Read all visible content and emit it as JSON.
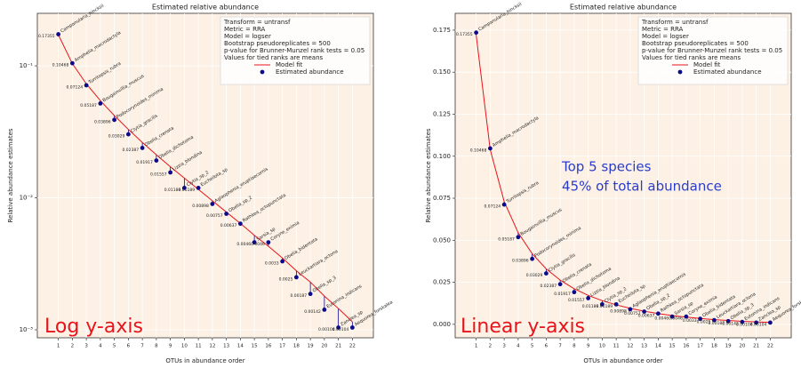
{
  "chart_data": [
    {
      "type": "line",
      "title": "Estimated relative abundance",
      "xlabel": "OTUs in abundance order",
      "ylabel": "Relative abundance estimates",
      "log_y": true,
      "grid": true,
      "legend": "upper right",
      "legend_text": [
        "Transform = untransf",
        "Metric = RRA",
        "Model = logser",
        "Bootstrap pseudoreplicates = 500",
        "p-value for Brunner-Munzel rank tests = 0.05",
        "Values for tied ranks are means"
      ],
      "annotations": [
        "Log y-axis"
      ],
      "x": [
        1,
        2,
        3,
        4,
        5,
        6,
        7,
        8,
        9,
        10,
        11,
        12,
        13,
        14,
        15,
        16,
        17,
        18,
        19,
        20,
        21,
        22
      ],
      "labels": [
        "Campanularia_hincksii",
        "Amphelia_macrodactyla",
        "Turritopsis_rubra",
        "Bougainvillia_muscus",
        "Podocorynoides_minima",
        "Clytia_gracilis",
        "Obelia_crenata",
        "Obelia_dichotoma",
        "Lizzia_blondina",
        "Clytia_sp_2",
        "Eucheilota_sp",
        "Aglaophenia_eruptiaecornis",
        "Obelia_sp_2",
        "Rathkea_octopunctata",
        "Sarsia_sp",
        "Coryne_eximia",
        "Obelia_bidentata",
        "Leuckartiara_octona",
        "Obelia_sp_3",
        "Eutonina_indicans",
        "Zanclea_sp",
        "Aequorea_forskalea"
      ],
      "series": [
        {
          "name": "Model fit",
          "color": "#e8141b",
          "values": [
            0.172,
            0.104,
            0.073,
            0.0545,
            0.042,
            0.033,
            0.0263,
            0.0212,
            0.0172,
            0.0141,
            0.0116,
            0.0095,
            0.0078,
            0.0064,
            0.0052,
            0.0043,
            0.0035,
            0.0028,
            0.0023,
            0.0018,
            0.00145,
            0.00115
          ]
        },
        {
          "name": "Estimated abundance",
          "color": "#0a0a8a",
          "values": [
            0.17355,
            0.10468,
            0.07124,
            0.05187,
            0.03896,
            0.03029,
            0.02387,
            0.01917,
            0.01557,
            0.01189,
            0.01189,
            0.00898,
            0.00757,
            0.00637,
            0.0046,
            0.0046,
            0.0033,
            0.0025,
            0.00187,
            0.00142,
            0.00104,
            0.00104
          ]
        }
      ],
      "xlim": [
        -0.5,
        23.5
      ],
      "xticks": [
        1,
        2,
        3,
        4,
        5,
        6,
        7,
        8,
        9,
        10,
        11,
        12,
        13,
        14,
        15,
        16,
        17,
        18,
        19,
        20,
        21,
        22
      ],
      "ylim": [
        0.00087,
        0.25
      ],
      "yticks": [
        {
          "value": 0.001,
          "label": "10⁻³"
        },
        {
          "value": 0.01,
          "label": "10⁻²"
        },
        {
          "value": 0.1,
          "label": "10⁻¹"
        }
      ]
    },
    {
      "type": "line",
      "title": "Estimated relative abundance",
      "xlabel": "OTUs in abundance order",
      "ylabel": "Relative abundance estimates",
      "log_y": false,
      "grid": true,
      "legend": "upper right",
      "legend_text": [
        "Transform = untransf",
        "Metric = RRA",
        "Model = logser",
        "Bootstrap pseudoreplicates = 500",
        "p-value for Brunner-Munzel rank tests = 0.05",
        "Values for tied ranks are means"
      ],
      "annotations": [
        "Linear y-axis",
        "Top 5 species",
        "45% of total abundance"
      ],
      "x": [
        1,
        2,
        3,
        4,
        5,
        6,
        7,
        8,
        9,
        10,
        11,
        12,
        13,
        14,
        15,
        16,
        17,
        18,
        19,
        20,
        21,
        22
      ],
      "labels": [
        "Campanularia_hincksii",
        "Amphelia_macrodactyla",
        "Turritopsis_rubra",
        "Bougainvillia_muscus",
        "Podocorynoides_minima",
        "Clytia_gracilis",
        "Obelia_crenata",
        "Obelia_dichotoma",
        "Lizzia_blondina",
        "Clytia_sp_2",
        "Eucheilota_sp",
        "Aglaophenia_eruptiaecornis",
        "Obelia_sp_2",
        "Rathkea_octopunctata",
        "Sarsia_sp",
        "Coryne_eximia",
        "Obelia_bidentata",
        "Leuckartiara_octona",
        "Obelia_sp_3",
        "Eutonina_indicans",
        "Zanclea_sp",
        "Aequorea_forskalea"
      ],
      "series": [
        {
          "name": "Model fit",
          "color": "#e8141b",
          "values": [
            0.172,
            0.104,
            0.073,
            0.0545,
            0.042,
            0.033,
            0.0263,
            0.0212,
            0.0172,
            0.0141,
            0.0116,
            0.0095,
            0.0078,
            0.0064,
            0.0052,
            0.0043,
            0.0035,
            0.0028,
            0.0023,
            0.0018,
            0.00145,
            0.00115
          ]
        },
        {
          "name": "Estimated abundance",
          "color": "#0a0a8a",
          "values": [
            0.17355,
            0.10468,
            0.07124,
            0.05187,
            0.03896,
            0.03029,
            0.02387,
            0.01917,
            0.01557,
            0.01189,
            0.01189,
            0.00898,
            0.00757,
            0.00637,
            0.0046,
            0.0046,
            0.0033,
            0.0025,
            0.00187,
            0.00142,
            0.00104,
            0.00104
          ]
        }
      ],
      "xlim": [
        -0.5,
        23.5
      ],
      "xticks": [
        1,
        2,
        3,
        4,
        5,
        6,
        7,
        8,
        9,
        10,
        11,
        12,
        13,
        14,
        15,
        16,
        17,
        18,
        19,
        20,
        21,
        22
      ],
      "ylim": [
        -0.008,
        0.185
      ],
      "yticks": [
        {
          "value": 0,
          "label": "0.000"
        },
        0.025,
        {
          "value": 0.05,
          "label": "0.050"
        },
        0.075,
        {
          "value": 0.1,
          "label": "0.100"
        },
        0.125,
        {
          "value": 0.15,
          "label": "0.150"
        },
        0.175
      ]
    }
  ]
}
